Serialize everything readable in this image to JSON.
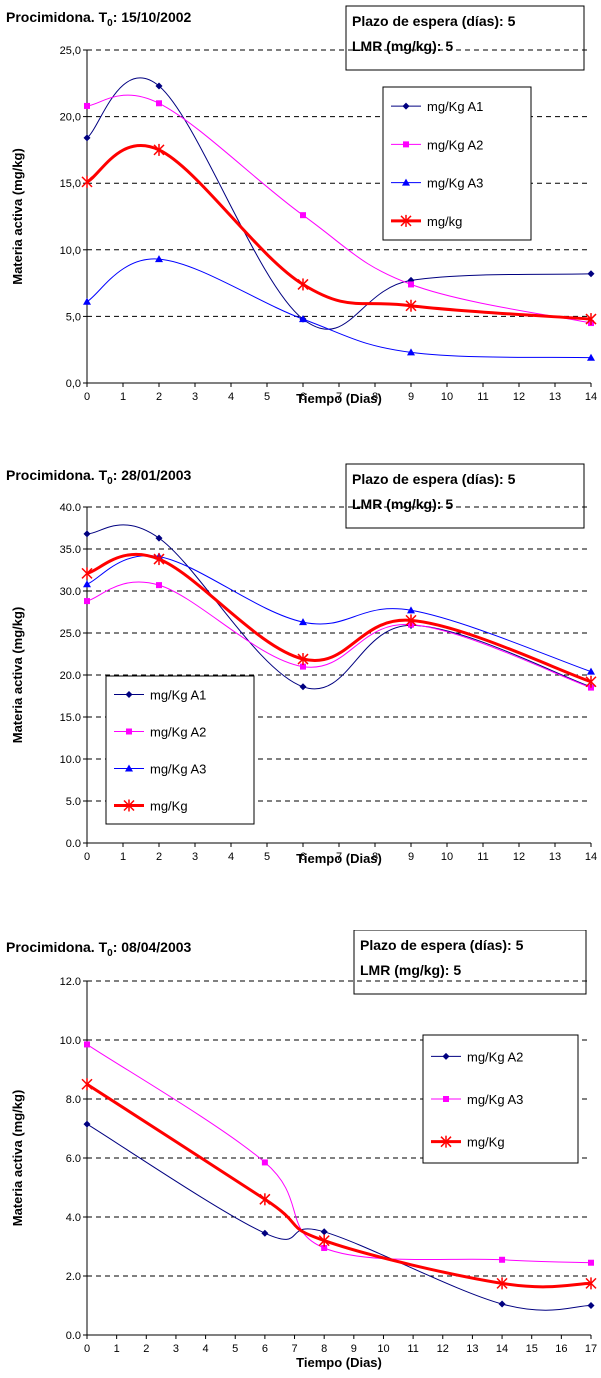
{
  "chart_data": [
    {
      "type": "line",
      "title_main": "Procimidona. T",
      "title_sub": "0",
      "title_rest": ": 15/10/2002",
      "info": [
        "Plazo de espera (días): 5",
        "LMR (mg/kg): 5"
      ],
      "xlabel": "Tiempo (Dias)",
      "ylabel": "Materia activa (mg/kg)",
      "xlim": [
        0,
        14
      ],
      "ylim": [
        0,
        25
      ],
      "x_ticks": [
        "0",
        "1",
        "2",
        "3",
        "4",
        "5",
        "6",
        "7",
        "8",
        "9",
        "10",
        "11",
        "12",
        "13",
        "14"
      ],
      "y_ticks": [
        "0,0",
        "5,0",
        "10,0",
        "15,0",
        "20,0",
        "25,0"
      ],
      "grid": "horizontal dashed",
      "legend_position": "top-right",
      "series": [
        {
          "name": "mg/Kg A1",
          "color": "#000080",
          "marker": "diamond",
          "x": [
            0,
            2,
            6,
            9,
            14
          ],
          "y": [
            18.4,
            22.3,
            4.8,
            7.7,
            8.2
          ]
        },
        {
          "name": "mg/Kg A2",
          "color": "#FF00FF",
          "marker": "square",
          "x": [
            0,
            2,
            6,
            9,
            14
          ],
          "y": [
            20.8,
            21.0,
            12.6,
            7.4,
            4.5
          ]
        },
        {
          "name": "mg/Kg A3",
          "color": "#0000FF",
          "marker": "triangle",
          "x": [
            0,
            2,
            6,
            9,
            14
          ],
          "y": [
            6.1,
            9.3,
            4.8,
            2.3,
            1.9
          ]
        },
        {
          "name": "mg/kg",
          "color": "#FF0000",
          "marker": "star",
          "x": [
            0,
            2,
            6,
            9,
            14
          ],
          "y": [
            15.1,
            17.5,
            7.4,
            5.8,
            4.8
          ]
        }
      ]
    },
    {
      "type": "line",
      "title_main": "Procimidona. T",
      "title_sub": "0",
      "title_rest": ": 28/01/2003",
      "info": [
        "Plazo de espera (días): 5",
        "LMR (mg/kg): 5"
      ],
      "xlabel": "Tiempo (Dias)",
      "ylabel": "Materia activa (mg/kg)",
      "xlim": [
        0,
        14
      ],
      "ylim": [
        0,
        40
      ],
      "x_ticks": [
        "0",
        "1",
        "2",
        "3",
        "4",
        "5",
        "6",
        "7",
        "8",
        "9",
        "10",
        "11",
        "12",
        "13",
        "14"
      ],
      "y_ticks": [
        "0.0",
        "5.0",
        "10.0",
        "15.0",
        "20.0",
        "25.0",
        "30.0",
        "35.0",
        "40.0"
      ],
      "grid": "horizontal dashed",
      "legend_position": "bottom-left",
      "series": [
        {
          "name": "mg/Kg A1",
          "color": "#000080",
          "marker": "diamond",
          "x": [
            0,
            2,
            6,
            9,
            14
          ],
          "y": [
            36.8,
            36.3,
            18.6,
            25.9,
            18.6
          ]
        },
        {
          "name": "mg/Kg A2",
          "color": "#FF00FF",
          "marker": "square",
          "x": [
            0,
            2,
            6,
            9,
            14
          ],
          "y": [
            28.8,
            30.7,
            21.0,
            26.0,
            18.5
          ]
        },
        {
          "name": "mg/Kg A3",
          "color": "#0000FF",
          "marker": "triangle",
          "x": [
            0,
            2,
            6,
            9,
            14
          ],
          "y": [
            30.8,
            34.1,
            26.3,
            27.7,
            20.4
          ]
        },
        {
          "name": "mg/Kg",
          "color": "#FF0000",
          "marker": "star",
          "x": [
            0,
            2,
            6,
            9,
            14
          ],
          "y": [
            32.1,
            33.8,
            21.9,
            26.5,
            19.2
          ]
        }
      ]
    },
    {
      "type": "line",
      "title_main": "Procimidona. T",
      "title_sub": "0",
      "title_rest": ": 08/04/2003",
      "info": [
        "Plazo de espera (días): 5",
        "LMR (mg/kg): 5"
      ],
      "xlabel": "Tiempo (Dias)",
      "ylabel": "Materia activa (mg/kg)",
      "xlim": [
        0,
        17
      ],
      "ylim": [
        0,
        12
      ],
      "x_ticks": [
        "0",
        "1",
        "2",
        "3",
        "4",
        "5",
        "6",
        "7",
        "8",
        "9",
        "10",
        "11",
        "12",
        "13",
        "14",
        "15",
        "16",
        "17"
      ],
      "y_ticks": [
        "0.0",
        "2.0",
        "4.0",
        "6.0",
        "8.0",
        "10.0",
        "12.0"
      ],
      "grid": "horizontal dashed",
      "legend_position": "right",
      "series": [
        {
          "name": "mg/Kg A2",
          "color": "#000080",
          "marker": "diamond",
          "x": [
            0,
            6,
            8,
            14,
            17
          ],
          "y": [
            7.15,
            3.45,
            3.5,
            1.05,
            1.0
          ]
        },
        {
          "name": "mg/Kg A3",
          "color": "#FF00FF",
          "marker": "square",
          "x": [
            0,
            6,
            8,
            14,
            17
          ],
          "y": [
            9.85,
            5.85,
            2.95,
            2.55,
            2.45
          ]
        },
        {
          "name": "mg/Kg",
          "color": "#FF0000",
          "marker": "star",
          "x": [
            0,
            6,
            8,
            14,
            17
          ],
          "y": [
            8.5,
            4.6,
            3.2,
            1.75,
            1.75
          ]
        }
      ]
    }
  ]
}
